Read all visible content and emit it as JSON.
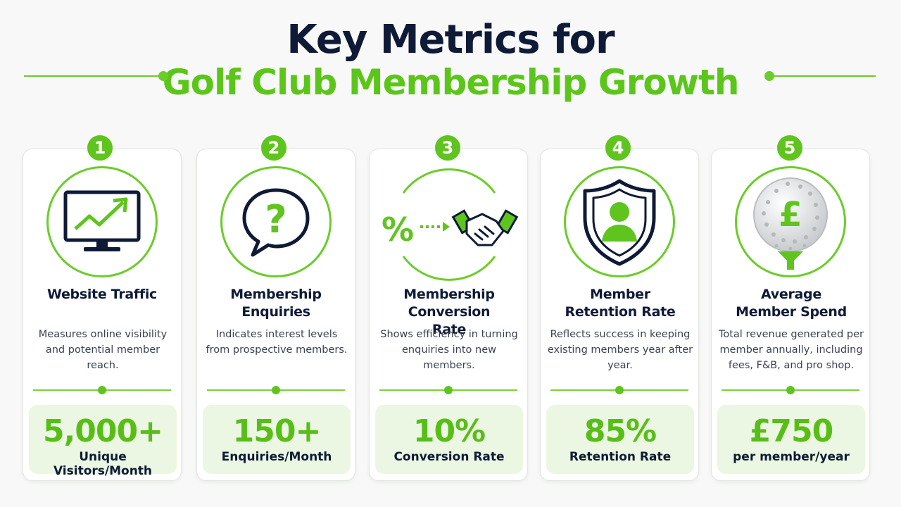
{
  "header": {
    "title_line1": "Key Metrics for",
    "title_line2": "Golf Club Membership Growth"
  },
  "colors": {
    "accent": "#5fc41e",
    "navy": "#0e1a36",
    "metric_bg": "#ecf7e3"
  },
  "cards": [
    {
      "number": "1",
      "icon": "monitor-chart-icon",
      "title": "Website Traffic",
      "description": "Measures online visibility and potential member reach.",
      "value": "5,000+",
      "label": "Unique Visitors/Month"
    },
    {
      "number": "2",
      "icon": "question-bubble-icon",
      "title": "Membership Enquiries",
      "description": "Indicates interest levels from prospective members.",
      "value": "150+",
      "label": "Enquiries/Month"
    },
    {
      "number": "3",
      "icon": "percent-handshake-icon",
      "title": "Membership Conversion Rate",
      "description": "Shows efficiency in turning enquiries into new members.",
      "value": "10%",
      "label": "Conversion Rate"
    },
    {
      "number": "4",
      "icon": "shield-person-icon",
      "title": "Member Retention Rate",
      "description": "Reflects success in keeping existing members year after year.",
      "value": "85%",
      "label": "Retention Rate"
    },
    {
      "number": "5",
      "icon": "golf-ball-pound-icon",
      "title": "Average Member Spend",
      "description": "Total revenue generated per member annually, including fees, F&B, and pro shop.",
      "value": "£750",
      "label": "per member/year"
    }
  ]
}
